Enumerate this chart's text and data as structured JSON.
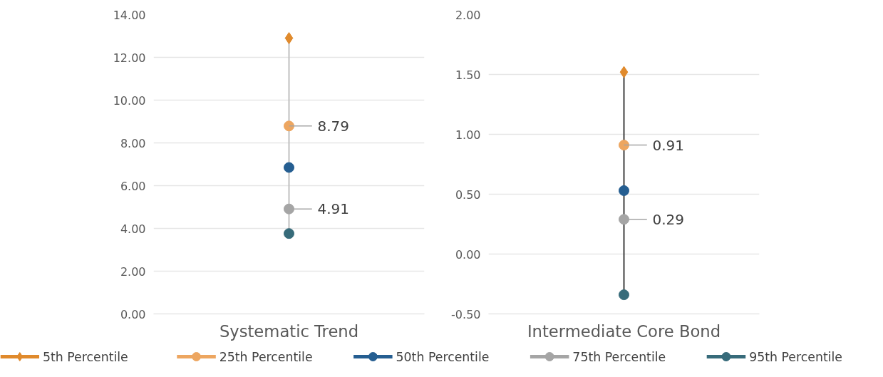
{
  "chart_data": [
    {
      "type": "scatter",
      "categories": [
        "Systematic Trend"
      ],
      "ylim": [
        0,
        14
      ],
      "yticks": [
        {
          "value": 0,
          "label": "0.00"
        },
        {
          "value": 2,
          "label": "2.00"
        },
        {
          "value": 4,
          "label": "4.00"
        },
        {
          "value": 6,
          "label": "6.00"
        },
        {
          "value": 8,
          "label": "8.00"
        },
        {
          "value": 10,
          "label": "10.00"
        },
        {
          "value": 12,
          "label": "12.00"
        },
        {
          "value": 14,
          "label": "14.00"
        }
      ],
      "grid": "y",
      "legend": "bottom",
      "series": [
        {
          "type": "line",
          "color": "#bfbfbf",
          "x": [
            "Systematic Trend",
            "Systematic Trend"
          ],
          "values": [
            12.9,
            3.76
          ],
          "marker": "none"
        },
        {
          "name": "5th Percentile",
          "color": "#e08a2c",
          "marker": "diamond",
          "values": [
            12.9
          ]
        },
        {
          "name": "25th Percentile",
          "color": "#eda660",
          "marker": "circle",
          "values": [
            8.79
          ],
          "value_labels": [
            "8.79"
          ]
        },
        {
          "name": "50th Percentile",
          "color": "#255e91",
          "marker": "circle",
          "values": [
            6.85
          ]
        },
        {
          "name": "75th Percentile",
          "color": "#a5a5a5",
          "marker": "circle",
          "values": [
            4.91
          ],
          "value_labels": [
            "4.91"
          ]
        },
        {
          "name": "95th Percentile",
          "color": "#376b7a",
          "marker": "circle",
          "values": [
            3.76
          ]
        }
      ]
    },
    {
      "type": "scatter",
      "categories": [
        "Intermediate Core Bond"
      ],
      "ylim": [
        -0.5,
        2
      ],
      "yticks": [
        {
          "value": -0.5,
          "label": "-0.50"
        },
        {
          "value": 0,
          "label": "0.00"
        },
        {
          "value": 0.5,
          "label": "0.50"
        },
        {
          "value": 1,
          "label": "1.00"
        },
        {
          "value": 1.5,
          "label": "1.50"
        },
        {
          "value": 2,
          "label": "2.00"
        }
      ],
      "grid": "y",
      "series": [
        {
          "type": "line",
          "color": "#404040",
          "x": [
            "Intermediate Core Bond",
            "Intermediate Core Bond"
          ],
          "values": [
            1.52,
            -0.34
          ],
          "marker": "none"
        },
        {
          "color": "#e08a2c",
          "marker": "diamond",
          "values": [
            1.52
          ]
        },
        {
          "color": "#eda660",
          "marker": "circle",
          "values": [
            0.91
          ],
          "value_labels": [
            "0.91"
          ]
        },
        {
          "color": "#255e91",
          "marker": "circle",
          "values": [
            0.53
          ]
        },
        {
          "color": "#a5a5a5",
          "marker": "circle",
          "values": [
            0.29
          ],
          "value_labels": [
            "0.29"
          ]
        },
        {
          "color": "#376b7a",
          "marker": "circle",
          "values": [
            -0.34
          ]
        }
      ]
    }
  ]
}
